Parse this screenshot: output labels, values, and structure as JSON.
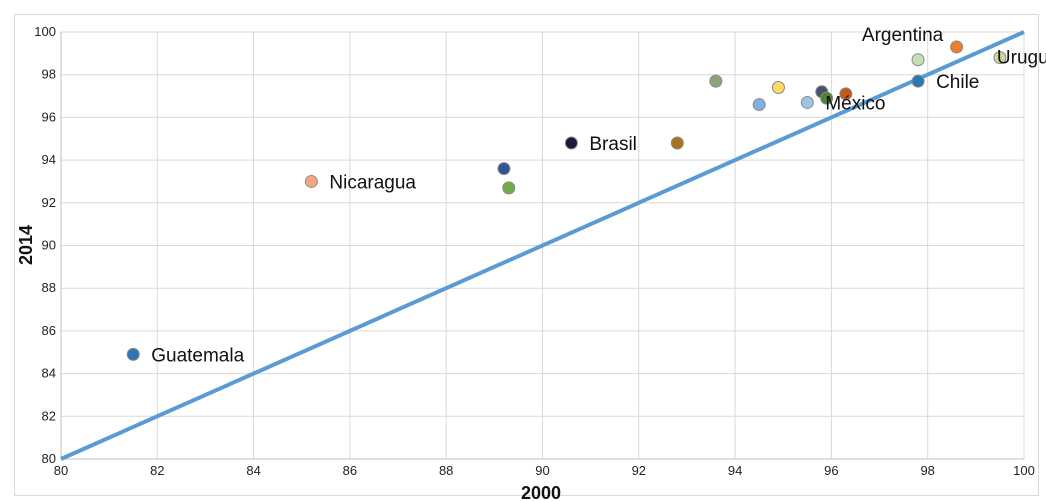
{
  "chart_data": {
    "type": "scatter",
    "title": "",
    "xlabel": "2000",
    "ylabel": "2014",
    "xlim": [
      80,
      100
    ],
    "ylim": [
      80,
      100
    ],
    "x_ticks": [
      "80",
      "82",
      "84",
      "86",
      "88",
      "90",
      "92",
      "94",
      "96",
      "98",
      "100"
    ],
    "y_ticks": [
      "80",
      "82",
      "84",
      "86",
      "88",
      "90",
      "92",
      "94",
      "96",
      "98",
      "100"
    ],
    "grid": true,
    "legend": "none",
    "reference_line": {
      "from": [
        80,
        80
      ],
      "to": [
        100,
        100
      ],
      "color": "#5b9bd5"
    },
    "points": [
      {
        "x": 81.5,
        "y": 84.9,
        "label": "Guatemala",
        "color": "#2e75b6"
      },
      {
        "x": 85.2,
        "y": 93.0,
        "label": "Nicaragua",
        "color": "#f4a582"
      },
      {
        "x": 89.2,
        "y": 93.6,
        "label": "",
        "color": "#2f5597"
      },
      {
        "x": 89.3,
        "y": 92.7,
        "label": "",
        "color": "#70ad47"
      },
      {
        "x": 90.6,
        "y": 94.8,
        "label": "Brasil",
        "color": "#1a1a3a"
      },
      {
        "x": 92.8,
        "y": 94.8,
        "label": "",
        "color": "#a9731c"
      },
      {
        "x": 93.6,
        "y": 97.7,
        "label": "",
        "color": "#8fa378"
      },
      {
        "x": 94.5,
        "y": 96.6,
        "label": "",
        "color": "#7fb0e0"
      },
      {
        "x": 94.9,
        "y": 97.4,
        "label": "",
        "color": "#ffd966"
      },
      {
        "x": 95.5,
        "y": 96.7,
        "label": "México",
        "color": "#9dc3e6"
      },
      {
        "x": 95.8,
        "y": 97.2,
        "label": "",
        "color": "#44546a"
      },
      {
        "x": 95.9,
        "y": 96.9,
        "label": "",
        "color": "#548235"
      },
      {
        "x": 96.3,
        "y": 97.1,
        "label": "",
        "color": "#c55a11"
      },
      {
        "x": 97.8,
        "y": 98.7,
        "label": "",
        "color": "#c5e0b4"
      },
      {
        "x": 97.8,
        "y": 97.7,
        "label": "Chile",
        "color": "#2e75b6"
      },
      {
        "x": 98.6,
        "y": 99.3,
        "label": "Argentina",
        "color": "#ed7d31"
      },
      {
        "x": 99.5,
        "y": 98.8,
        "label": "Uruguay",
        "color": "#c9d99a"
      }
    ]
  }
}
